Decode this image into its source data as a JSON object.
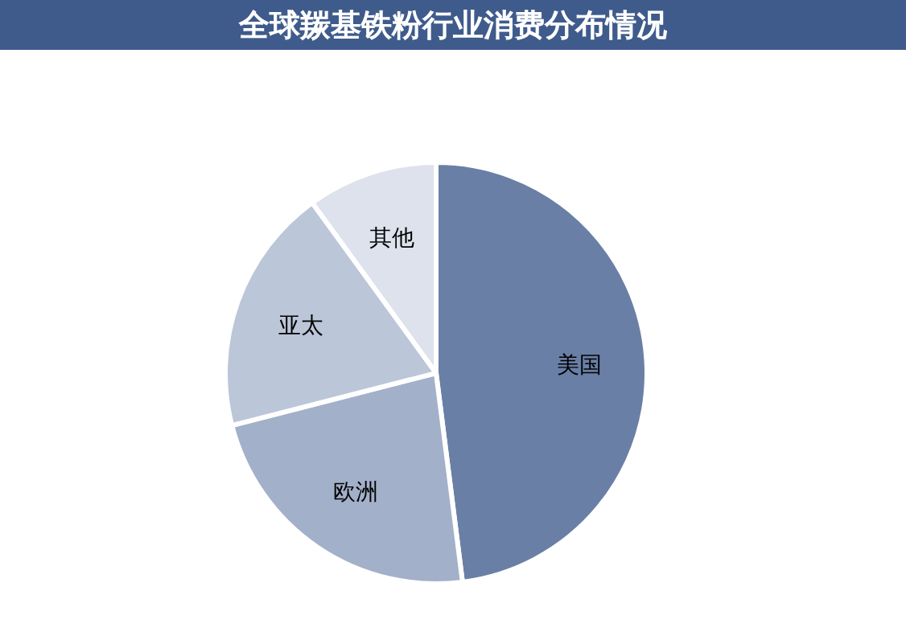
{
  "chart_data": {
    "type": "pie",
    "title": "全球羰基铁粉行业消费分布情况",
    "categories": [
      "美国",
      "欧洲",
      "亚太",
      "其他"
    ],
    "values": [
      48,
      23,
      19,
      10
    ],
    "colors": [
      "#6a7fa6",
      "#a3b0c9",
      "#bcc6d9",
      "#dde2ed"
    ]
  }
}
